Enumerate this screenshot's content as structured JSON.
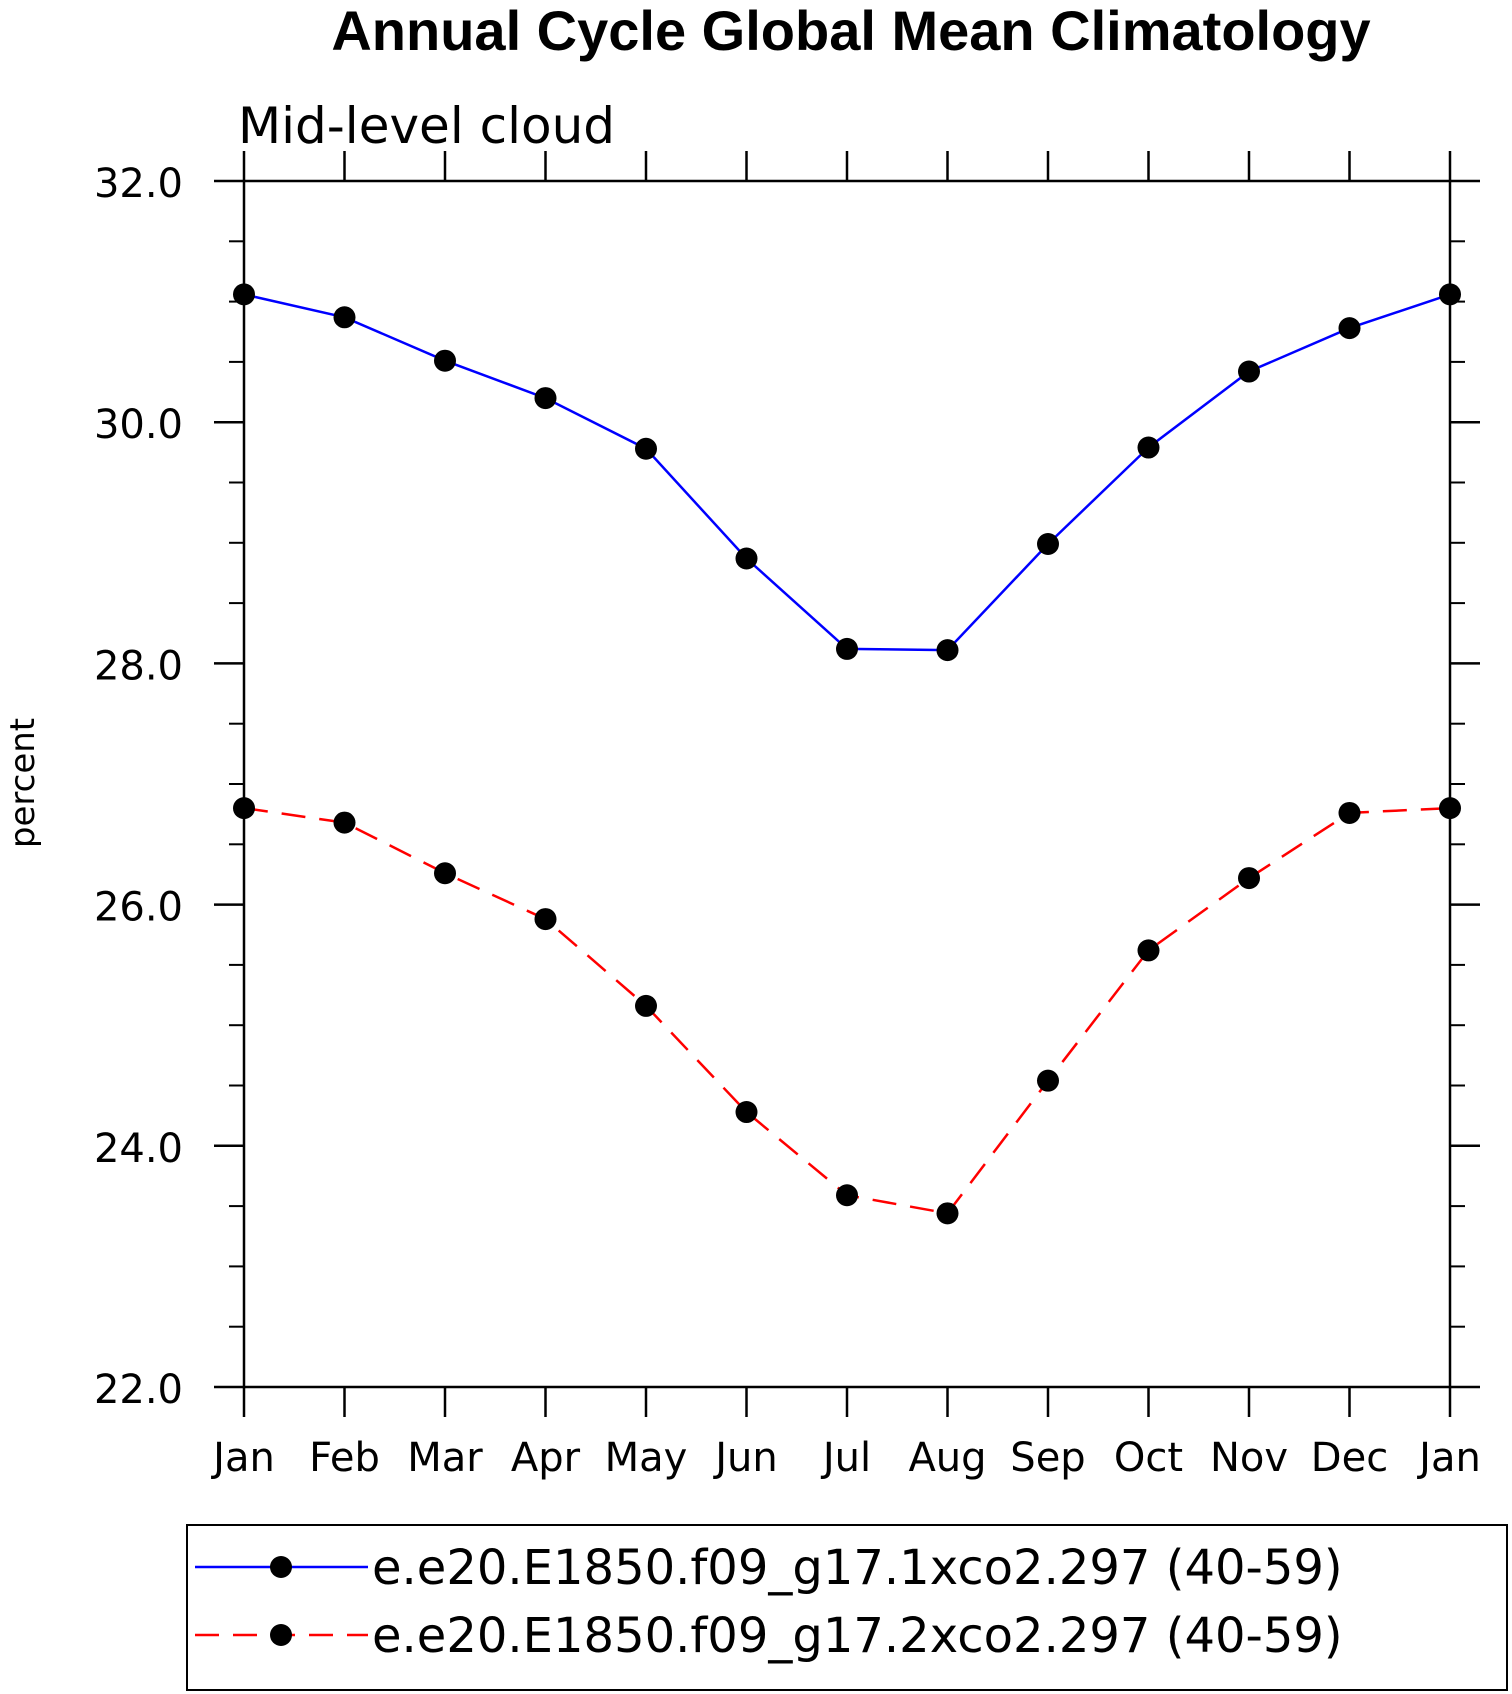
{
  "chart_data": {
    "type": "line",
    "title": "Annual Cycle Global Mean Climatology",
    "subtitle": "Mid-level cloud",
    "xlabel": "",
    "ylabel": "percent",
    "categories": [
      "Jan",
      "Feb",
      "Mar",
      "Apr",
      "May",
      "Jun",
      "Jul",
      "Aug",
      "Sep",
      "Oct",
      "Nov",
      "Dec",
      "Jan"
    ],
    "ylim": [
      22.0,
      32.0
    ],
    "yticks": [
      "22.0",
      "24.0",
      "26.0",
      "28.0",
      "30.0",
      "32.0"
    ],
    "ytick_values": [
      22,
      24,
      26,
      28,
      30,
      32
    ],
    "series": [
      {
        "name": "e.e20.E1850.f09_g17.1xco2.297 (40-59)",
        "color": "#0000ff",
        "line_style": "solid",
        "marker": "filled-circle",
        "values": [
          31.06,
          30.87,
          30.51,
          30.2,
          29.78,
          28.87,
          28.12,
          28.11,
          28.99,
          29.79,
          30.42,
          30.78,
          31.06
        ]
      },
      {
        "name": "e.e20.E1850.f09_g17.2xco2.297 (40-59)",
        "color": "#ff0000",
        "line_style": "dashed",
        "marker": "filled-circle",
        "values": [
          26.8,
          26.68,
          26.26,
          25.88,
          25.16,
          24.28,
          23.59,
          23.44,
          24.54,
          25.62,
          26.22,
          26.76,
          26.8
        ]
      }
    ],
    "grid": false,
    "legend_position": "bottom"
  }
}
